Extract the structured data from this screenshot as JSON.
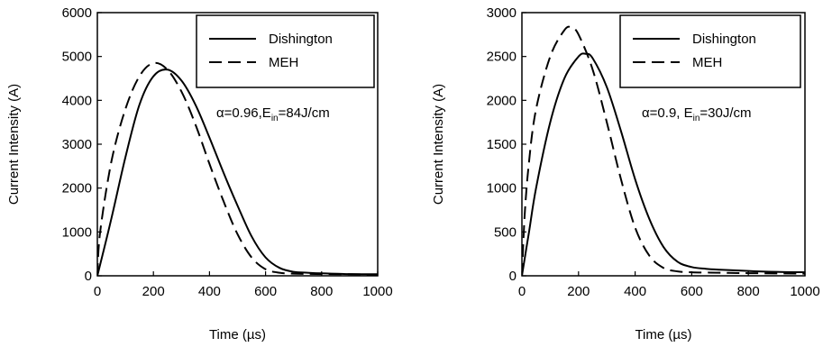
{
  "chart_data": [
    {
      "type": "line",
      "xlabel": "Time (µs)",
      "ylabel": "Current Intensity (A)",
      "xlim": [
        0,
        1000
      ],
      "ylim": [
        0,
        6000
      ],
      "xticks": [
        "0",
        "200",
        "400",
        "600",
        "800",
        "1000"
      ],
      "yticks": [
        "0",
        "1000",
        "2000",
        "3000",
        "4000",
        "5000",
        "6000"
      ],
      "legend_position": "top-right",
      "annotation": {
        "prefix": "α=0.96,E",
        "sub": "in",
        "suffix": "=84J/cm"
      },
      "series": [
        {
          "name": "Dishington",
          "style": "solid",
          "x": [
            0,
            50,
            100,
            150,
            200,
            250,
            300,
            350,
            400,
            450,
            500,
            550,
            600,
            650,
            700,
            750,
            800,
            900,
            1000
          ],
          "y": [
            0,
            1300,
            2700,
            3900,
            4550,
            4700,
            4450,
            3900,
            3150,
            2350,
            1600,
            900,
            420,
            180,
            90,
            70,
            55,
            40,
            35
          ]
        },
        {
          "name": "MEH",
          "style": "dashed",
          "x": [
            0,
            10,
            50,
            100,
            150,
            200,
            250,
            300,
            350,
            400,
            450,
            500,
            550,
            600,
            650,
            700,
            800,
            1000
          ],
          "y": [
            0,
            1000,
            2600,
            3800,
            4550,
            4850,
            4700,
            4200,
            3450,
            2550,
            1700,
            950,
            420,
            150,
            70,
            50,
            40,
            30
          ]
        }
      ]
    },
    {
      "type": "line",
      "xlabel": "Time (µs)",
      "ylabel": "Current Intensity (A)",
      "xlim": [
        0,
        1000
      ],
      "ylim": [
        0,
        3000
      ],
      "xticks": [
        "0",
        "200",
        "400",
        "600",
        "800",
        "1000"
      ],
      "yticks": [
        "0",
        "500",
        "1000",
        "1500",
        "2000",
        "2500",
        "3000"
      ],
      "legend_position": "top-right",
      "annotation": {
        "prefix": "α=0.9, E",
        "sub": "in",
        "suffix": "=30J/cm"
      },
      "series": [
        {
          "name": "Dishington",
          "style": "solid",
          "x": [
            0,
            25,
            50,
            100,
            150,
            200,
            225,
            250,
            300,
            350,
            400,
            450,
            500,
            550,
            600,
            650,
            700,
            800,
            900,
            1000
          ],
          "y": [
            0,
            500,
            1000,
            1750,
            2250,
            2500,
            2530,
            2480,
            2150,
            1650,
            1100,
            650,
            330,
            160,
            100,
            80,
            70,
            55,
            45,
            40
          ]
        },
        {
          "name": "MEH",
          "style": "dashed",
          "x": [
            0,
            10,
            25,
            50,
            100,
            150,
            175,
            200,
            250,
            300,
            350,
            400,
            450,
            500,
            550,
            600,
            700,
            800,
            1000
          ],
          "y": [
            0,
            700,
            1300,
            1900,
            2500,
            2800,
            2830,
            2750,
            2350,
            1750,
            1100,
            550,
            230,
            90,
            50,
            40,
            35,
            30,
            25
          ]
        }
      ]
    }
  ]
}
